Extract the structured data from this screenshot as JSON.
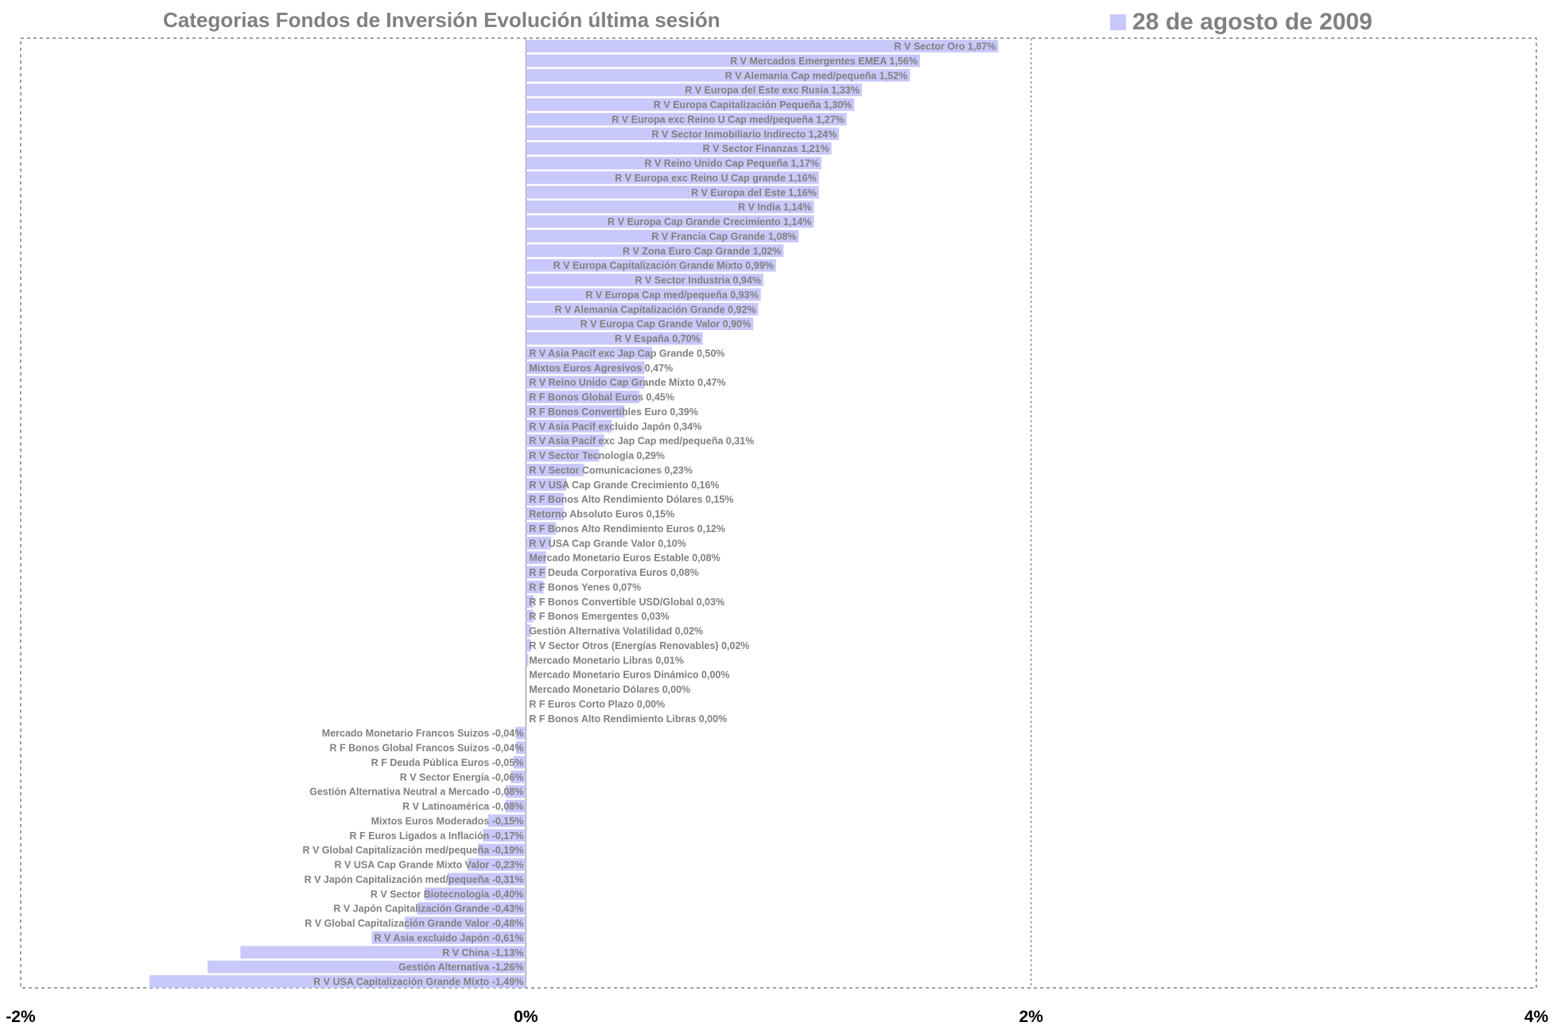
{
  "chart_data": {
    "type": "bar",
    "orientation": "horizontal",
    "title": "Categorias Fondos de Inversión Evolución última sesión",
    "legend": {
      "label": "28 de agosto de 2009",
      "position": "top-right",
      "color": "#c8c8fa"
    },
    "bar_color": "#c8c8fa",
    "label_color": "#808080",
    "xlim": [
      -2,
      4
    ],
    "x_ticks": [
      {
        "value": -2,
        "label": "-2%"
      },
      {
        "value": 0,
        "label": "0%"
      },
      {
        "value": 2,
        "label": "2%"
      },
      {
        "value": 4,
        "label": "4%"
      }
    ],
    "grid": "dashed vertical lines at major ticks",
    "bars": [
      {
        "label": "R V Sector Oro 1,87%",
        "value": 1.87
      },
      {
        "label": "R V Mercados Emergentes EMEA 1,56%",
        "value": 1.56
      },
      {
        "label": "R V Alemania Cap med/pequeña 1,52%",
        "value": 1.52
      },
      {
        "label": "R V Europa del Este exc Rusia 1,33%",
        "value": 1.33
      },
      {
        "label": "R V Europa Capitalización Pequeña 1,30%",
        "value": 1.3
      },
      {
        "label": "R V Europa exc Reino U Cap med/pequeña 1,27%",
        "value": 1.27
      },
      {
        "label": "R V Sector Inmobiliario Indirecto 1,24%",
        "value": 1.24
      },
      {
        "label": "R V Sector Finanzas 1,21%",
        "value": 1.21
      },
      {
        "label": "R V Reino Unido Cap Pequeña 1,17%",
        "value": 1.17
      },
      {
        "label": "R V Europa exc Reino U Cap grande 1,16%",
        "value": 1.16
      },
      {
        "label": "R V Europa del Este 1,16%",
        "value": 1.16
      },
      {
        "label": "R V India 1,14%",
        "value": 1.14
      },
      {
        "label": "R V Europa Cap Grande Crecimiento 1,14%",
        "value": 1.14
      },
      {
        "label": "R V Francia Cap Grande 1,08%",
        "value": 1.08
      },
      {
        "label": "R V Zona Euro Cap Grande 1,02%",
        "value": 1.02
      },
      {
        "label": "R V Europa Capitalización Grande Mixto 0,99%",
        "value": 0.99
      },
      {
        "label": "R V Sector Industria 0,94%",
        "value": 0.94
      },
      {
        "label": "R V Europa Cap med/pequeña 0,93%",
        "value": 0.93
      },
      {
        "label": "R V Alemania Capitalización Grande 0,92%",
        "value": 0.92
      },
      {
        "label": "R V Europa Cap Grande Valor 0,90%",
        "value": 0.9
      },
      {
        "label": "R V España 0,70%",
        "value": 0.7
      },
      {
        "label": "R V Asia Pacíf exc Jap Cap Grande 0,50%",
        "value": 0.5
      },
      {
        "label": "Mixtos Euros Agresivos 0,47%",
        "value": 0.47
      },
      {
        "label": "R V Reino Unido Cap Grande Mixto 0,47%",
        "value": 0.47
      },
      {
        "label": "R F Bonos Global Euros 0,45%",
        "value": 0.45
      },
      {
        "label": "R F Bonos Convertibles Euro 0,39%",
        "value": 0.39
      },
      {
        "label": "R V Asia Pacíf excluido Japón 0,34%",
        "value": 0.34
      },
      {
        "label": "R V Asia Pacíf exc Jap Cap med/pequeña 0,31%",
        "value": 0.31
      },
      {
        "label": "R V Sector Tecnología 0,29%",
        "value": 0.29
      },
      {
        "label": "R V Sector Comunicaciones 0,23%",
        "value": 0.23
      },
      {
        "label": "R V USA Cap Grande Crecimiento 0,16%",
        "value": 0.16
      },
      {
        "label": "R F Bonos Alto Rendimiento Dólares 0,15%",
        "value": 0.15
      },
      {
        "label": "Retorno Absoluto Euros 0,15%",
        "value": 0.15
      },
      {
        "label": "R F Bonos Alto Rendimiento Euros 0,12%",
        "value": 0.12
      },
      {
        "label": "R V USA Cap Grande Valor 0,10%",
        "value": 0.1
      },
      {
        "label": "Mercado Monetario Euros Estable 0,08%",
        "value": 0.08
      },
      {
        "label": "R F Deuda Corporativa Euros 0,08%",
        "value": 0.08
      },
      {
        "label": "R F Bonos Yenes 0,07%",
        "value": 0.07
      },
      {
        "label": "R F Bonos Convertible USD/Global 0,03%",
        "value": 0.03
      },
      {
        "label": "R F Bonos Emergentes 0,03%",
        "value": 0.03
      },
      {
        "label": "Gestión Alternativa Volatilidad 0,02%",
        "value": 0.02
      },
      {
        "label": "R V Sector Otros (Energías Renovables) 0,02%",
        "value": 0.02
      },
      {
        "label": "Mercado Monetario Libras 0,01%",
        "value": 0.01
      },
      {
        "label": "Mercado Monetario Euros Dinámico 0,00%",
        "value": 0.0
      },
      {
        "label": "Mercado Monetario Dólares 0,00%",
        "value": 0.0
      },
      {
        "label": "R F Euros Corto Plazo 0,00%",
        "value": 0.0
      },
      {
        "label": "R F Bonos Alto Rendimiento Libras 0,00%",
        "value": 0.0
      },
      {
        "label": "Mercado Monetario Francos Suizos -0,04%",
        "value": -0.04
      },
      {
        "label": "R F Bonos Global Francos Suizos -0,04%",
        "value": -0.04
      },
      {
        "label": "R F Deuda Pública Euros -0,05%",
        "value": -0.05
      },
      {
        "label": "R V Sector Energía -0,06%",
        "value": -0.06
      },
      {
        "label": "Gestión Alternativa Neutral a Mercado -0,08%",
        "value": -0.08
      },
      {
        "label": "R V Latinoamérica -0,08%",
        "value": -0.08
      },
      {
        "label": "Mixtos Euros Moderados -0,15%",
        "value": -0.15
      },
      {
        "label": "R F Euros Ligados a Inflación -0,17%",
        "value": -0.17
      },
      {
        "label": "R V Global Capitalización med/pequeña -0,19%",
        "value": -0.19
      },
      {
        "label": "R V USA Cap Grande Mixto Valor -0,23%",
        "value": -0.23
      },
      {
        "label": "R V Japón Capitalización med/pequeña -0,31%",
        "value": -0.31
      },
      {
        "label": "R V Sector Biotecnología -0,40%",
        "value": -0.4
      },
      {
        "label": "R V Japón Capitalización Grande -0,43%",
        "value": -0.43
      },
      {
        "label": "R V Global Capitalización Grande Valor -0,48%",
        "value": -0.48
      },
      {
        "label": "R V Asia excluido Japón -0,61%",
        "value": -0.61
      },
      {
        "label": "R V China -1,13%",
        "value": -1.13
      },
      {
        "label": "Gestión Alternativa -1,26%",
        "value": -1.26
      },
      {
        "label": "R V USA Capitalización Grande Mixto -1,49%",
        "value": -1.49
      }
    ]
  }
}
